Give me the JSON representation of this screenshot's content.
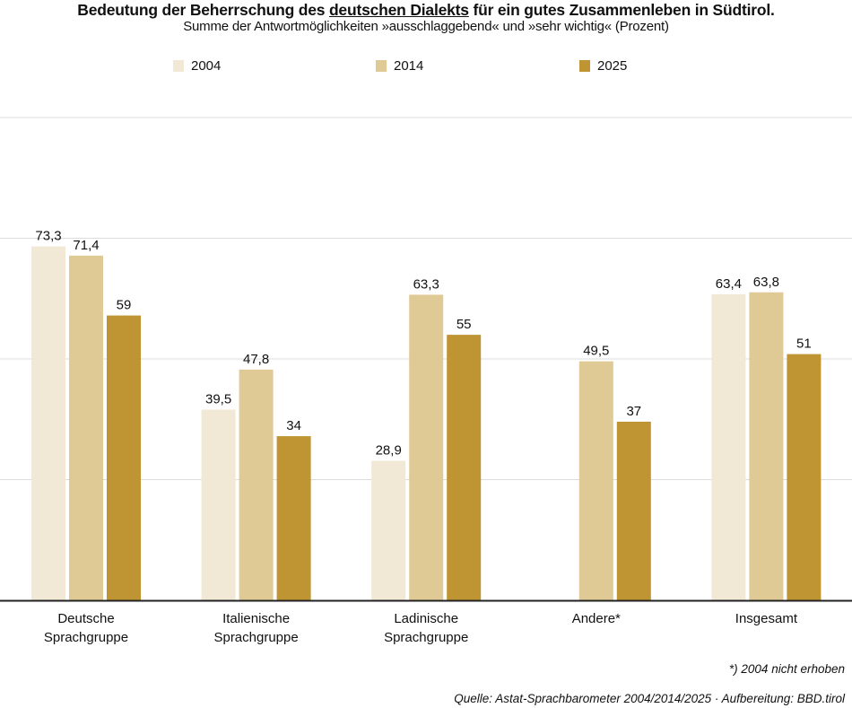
{
  "chart_data": {
    "type": "bar",
    "title_parts": {
      "before": "Bedeutung der Beherrschung des ",
      "underlined": "deutschen Dialekts",
      "after": " für ein gutes Zusammenleben in Südtirol."
    },
    "title": "Bedeutung der Beherrschung des deutschen Dialekts für ein gutes Zusammenleben in Südtirol.",
    "subtitle": "Summe der Antwortmöglichkeiten »ausschlaggebend« und »sehr wichtig« (Prozent)",
    "categories": [
      [
        "Deutsche",
        "Sprachgruppe"
      ],
      [
        "Italienische",
        "Sprachgruppe"
      ],
      [
        "Ladinische",
        "Sprachgruppe"
      ],
      [
        "Andere*"
      ],
      [
        "Insgesamt"
      ]
    ],
    "series": [
      {
        "name": "2004",
        "color": "#f1e8d6",
        "values": [
          73.3,
          39.5,
          28.9,
          null,
          63.4
        ],
        "labels": [
          "73,3",
          "39,5",
          "28,9",
          "",
          "63,4"
        ]
      },
      {
        "name": "2014",
        "color": "#dfc995",
        "values": [
          71.4,
          47.8,
          63.3,
          49.5,
          63.8
        ],
        "labels": [
          "71,4",
          "47,8",
          "63,3",
          "49,5",
          "63,8"
        ]
      },
      {
        "name": "2025",
        "color": "#bf9533",
        "values": [
          59,
          34,
          55,
          37,
          51
        ],
        "labels": [
          "59",
          "34",
          "55",
          "37",
          "51"
        ]
      }
    ],
    "xlabel": "",
    "ylabel": "",
    "ylim": [
      0,
      100
    ],
    "gridlines": [
      25,
      50,
      75,
      100
    ],
    "grid": true,
    "y_axis_labels_shown": false,
    "legend_position": "top-center"
  },
  "footnotes": {
    "note": "*) 2004 nicht erhoben",
    "source": "Quelle: Astat-Sprachbarometer 2004/2014/2025 · Aufbereitung: BBD.tirol"
  }
}
